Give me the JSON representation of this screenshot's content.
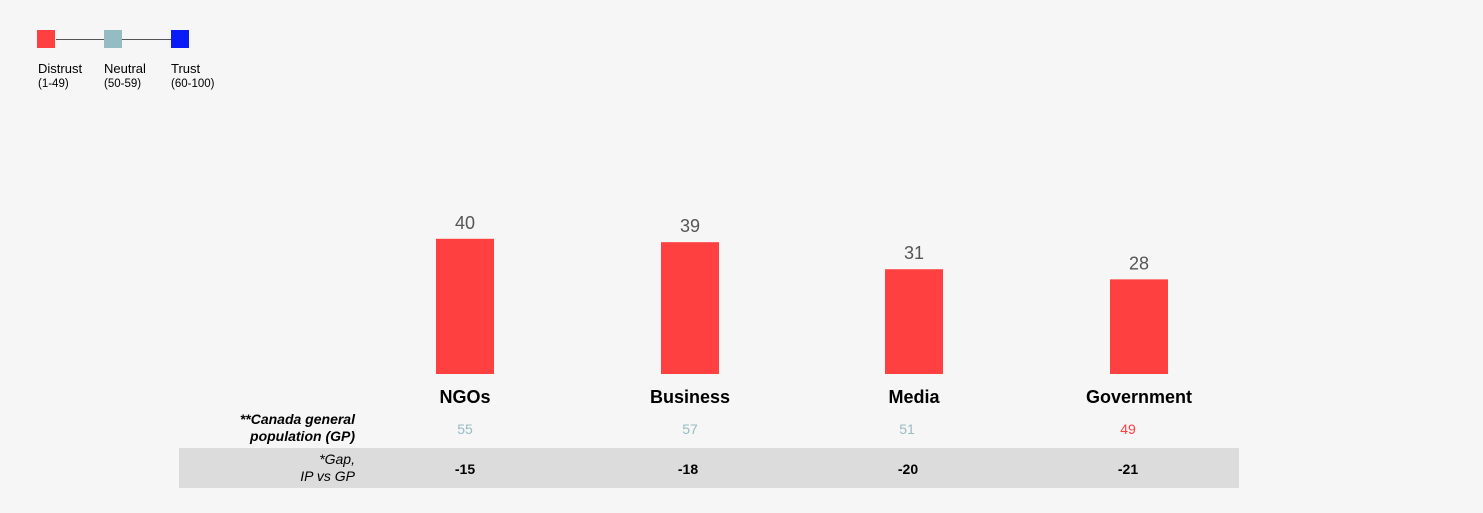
{
  "legend": {
    "items": [
      {
        "label": "Distrust",
        "range": "(1-49)",
        "color": "#ff4040"
      },
      {
        "label": "Neutral",
        "range": "(50-59)",
        "color": "#96bcc3"
      },
      {
        "label": "Trust",
        "range": "(60-100)",
        "color": "#0a1cf5"
      }
    ]
  },
  "chart_data": {
    "type": "bar",
    "categories": [
      "NGOs",
      "Business",
      "Media",
      "Government"
    ],
    "values": [
      40,
      39,
      31,
      28
    ],
    "bar_color": "#ff4040",
    "value_label_color": "#555555",
    "title": "",
    "xlabel": "",
    "ylabel": "",
    "grid": false,
    "legend_position": "top-left"
  },
  "table": {
    "gp_label_line1": "**Canada general",
    "gp_label_line2": "population (GP)",
    "gap_label_line1": "*Gap,",
    "gap_label_line2": "IP vs GP",
    "gp_values": [
      {
        "text": "55",
        "color": "#96bcc3"
      },
      {
        "text": "57",
        "color": "#96bcc3"
      },
      {
        "text": "51",
        "color": "#96bcc3"
      },
      {
        "text": "49",
        "color": "#ff4040"
      }
    ],
    "gap_values": [
      "-15",
      "-18",
      "-20",
      "-21"
    ]
  }
}
